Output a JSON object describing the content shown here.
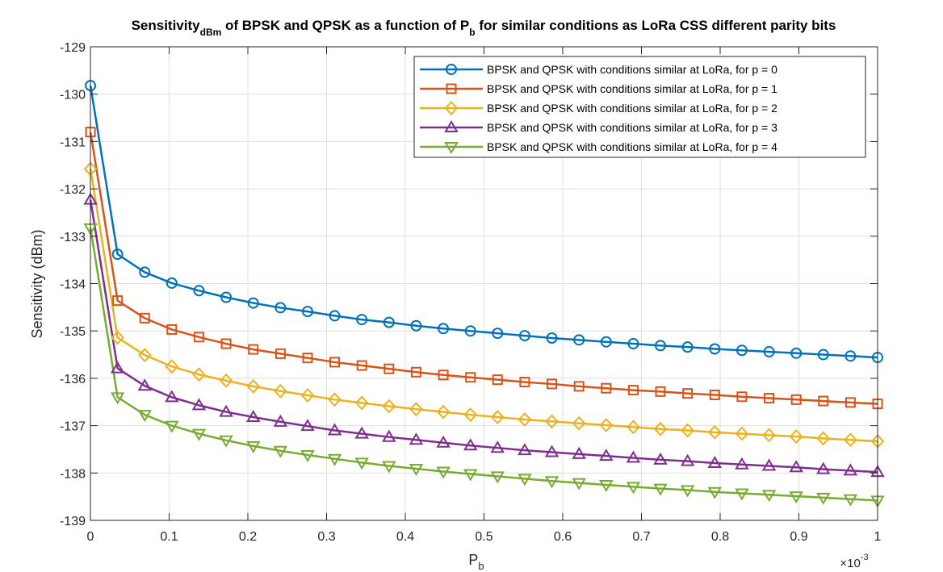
{
  "chart_data": {
    "type": "line",
    "title": {
      "main": "Sensitivity",
      "sub1": "dBm",
      "mid": " of BPSK and QPSK as a function of P",
      "sub2": "b",
      "end": " for similar conditions as LoRa CSS different parity bits"
    },
    "xlabel": {
      "main": "P",
      "sub": "b"
    },
    "ylabel": "Sensitivity (dBm)",
    "x_exponent": {
      "base": "×10",
      "power": "-3"
    },
    "xlim": [
      0,
      1
    ],
    "ylim": [
      -139,
      -129
    ],
    "xticks": [
      0,
      0.1,
      0.2,
      0.3,
      0.4,
      0.5,
      0.6,
      0.7,
      0.8,
      0.9,
      1
    ],
    "xtick_labels": [
      "0",
      "0.1",
      "0.2",
      "0.3",
      "0.4",
      "0.5",
      "0.6",
      "0.7",
      "0.8",
      "0.9",
      "1"
    ],
    "yticks": [
      -129,
      -130,
      -131,
      -132,
      -133,
      -134,
      -135,
      -136,
      -137,
      -138,
      -139
    ],
    "ytick_labels": [
      "-129",
      "-130",
      "-131",
      "-132",
      "-133",
      "-134",
      "-135",
      "-136",
      "-137",
      "-138",
      "-139"
    ],
    "grid": true,
    "legend_position": "top-right",
    "x": [
      0.0001,
      0.0345,
      0.069,
      0.1034,
      0.1379,
      0.1724,
      0.2069,
      0.2414,
      0.2759,
      0.3103,
      0.3448,
      0.3793,
      0.4138,
      0.4483,
      0.4828,
      0.5172,
      0.5517,
      0.5862,
      0.6207,
      0.6552,
      0.6897,
      0.7241,
      0.7586,
      0.7931,
      0.8276,
      0.8621,
      0.8966,
      0.931,
      0.9655,
      1.0
    ],
    "series": [
      {
        "name": "BPSK and QPSK with conditions similar at LoRa, for p = 0",
        "color": "#0072BD",
        "marker": "circle",
        "values": [
          -129.82,
          -133.38,
          -133.76,
          -133.99,
          -134.15,
          -134.29,
          -134.41,
          -134.51,
          -134.59,
          -134.68,
          -134.76,
          -134.82,
          -134.89,
          -134.95,
          -135.0,
          -135.05,
          -135.1,
          -135.15,
          -135.19,
          -135.23,
          -135.27,
          -135.31,
          -135.34,
          -135.38,
          -135.41,
          -135.44,
          -135.47,
          -135.5,
          -135.53,
          -135.56
        ]
      },
      {
        "name": "BPSK and QPSK with conditions similar at LoRa, for p = 1",
        "color": "#D95319",
        "marker": "square",
        "values": [
          -130.8,
          -134.36,
          -134.73,
          -134.97,
          -135.13,
          -135.27,
          -135.39,
          -135.48,
          -135.57,
          -135.66,
          -135.73,
          -135.8,
          -135.87,
          -135.93,
          -135.98,
          -136.03,
          -136.08,
          -136.12,
          -136.17,
          -136.21,
          -136.25,
          -136.28,
          -136.32,
          -136.35,
          -136.39,
          -136.42,
          -136.45,
          -136.48,
          -136.51,
          -136.54
        ]
      },
      {
        "name": "BPSK and QPSK with conditions similar at LoRa, for p = 2",
        "color": "#EDB120",
        "marker": "diamond",
        "values": [
          -131.58,
          -135.14,
          -135.51,
          -135.75,
          -135.92,
          -136.05,
          -136.17,
          -136.27,
          -136.36,
          -136.45,
          -136.52,
          -136.59,
          -136.65,
          -136.71,
          -136.77,
          -136.82,
          -136.87,
          -136.91,
          -136.95,
          -136.99,
          -137.03,
          -137.07,
          -137.1,
          -137.14,
          -137.17,
          -137.2,
          -137.23,
          -137.27,
          -137.3,
          -137.33
        ]
      },
      {
        "name": "BPSK and QPSK with conditions similar at LoRa, for p = 3",
        "color": "#7E2F8E",
        "marker": "triangle-up",
        "values": [
          -132.23,
          -135.79,
          -136.16,
          -136.4,
          -136.57,
          -136.71,
          -136.82,
          -136.92,
          -137.01,
          -137.1,
          -137.17,
          -137.24,
          -137.3,
          -137.36,
          -137.42,
          -137.47,
          -137.52,
          -137.56,
          -137.6,
          -137.64,
          -137.68,
          -137.72,
          -137.75,
          -137.79,
          -137.82,
          -137.85,
          -137.88,
          -137.92,
          -137.95,
          -137.98
        ]
      },
      {
        "name": "BPSK and QPSK with conditions similar at LoRa, for p = 4",
        "color": "#77AC30",
        "marker": "triangle-down",
        "values": [
          -132.83,
          -136.4,
          -136.77,
          -137.0,
          -137.17,
          -137.31,
          -137.43,
          -137.53,
          -137.62,
          -137.7,
          -137.78,
          -137.85,
          -137.91,
          -137.97,
          -138.02,
          -138.07,
          -138.12,
          -138.17,
          -138.21,
          -138.25,
          -138.29,
          -138.33,
          -138.36,
          -138.4,
          -138.43,
          -138.46,
          -138.49,
          -138.52,
          -138.55,
          -138.58
        ]
      }
    ]
  }
}
